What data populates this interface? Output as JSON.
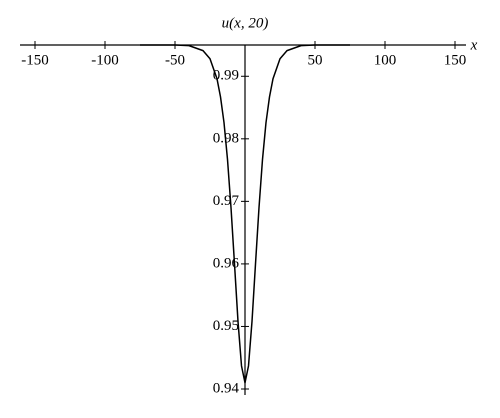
{
  "chart_data": {
    "type": "line",
    "title": "u(x, 20)",
    "x_label": "x",
    "x": [
      -75,
      -60,
      -50,
      -40,
      -30,
      -25,
      -20,
      -17.5,
      -15,
      -12.5,
      -10,
      -7.5,
      -5,
      -2.5,
      0,
      2.5,
      5,
      7.5,
      10,
      12.5,
      15,
      17.5,
      20,
      25,
      30,
      40,
      50,
      60,
      75
    ],
    "series": [
      {
        "name": "u(x, 20)",
        "color": "#000000",
        "values": [
          0.995,
          0.995,
          0.995,
          0.9949,
          0.9941,
          0.9928,
          0.9896,
          0.9867,
          0.9826,
          0.9767,
          0.969,
          0.96,
          0.9508,
          0.9437,
          0.941,
          0.9437,
          0.9508,
          0.96,
          0.969,
          0.9767,
          0.9826,
          0.9867,
          0.9896,
          0.9928,
          0.9941,
          0.9949,
          0.995,
          0.995,
          0.995
        ]
      }
    ],
    "xlim": [
      -150,
      150
    ],
    "ylim": [
      0.94,
      0.995
    ],
    "xticks": [
      -150,
      -100,
      -50,
      50,
      100,
      150
    ],
    "yticks": [
      0.99,
      0.98,
      0.97,
      0.96,
      0.95,
      0.94
    ]
  }
}
